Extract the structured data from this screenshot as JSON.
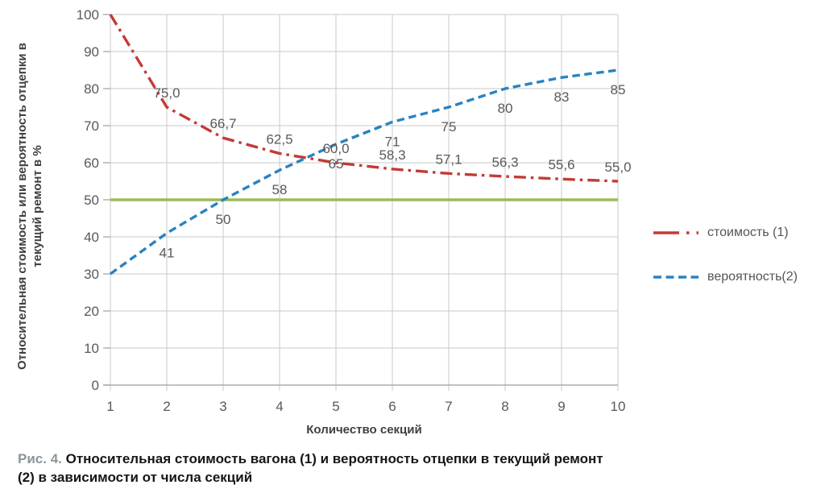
{
  "chart_data": {
    "type": "line",
    "x": [
      1,
      2,
      3,
      4,
      5,
      6,
      7,
      8,
      9,
      10
    ],
    "series": [
      {
        "name": "стоимость (1)",
        "color": "#c43a36",
        "dash": "dash-dot",
        "values": [
          100,
          75.0,
          66.7,
          62.5,
          60.0,
          58.3,
          57.1,
          56.3,
          55.6,
          55.0
        ],
        "labels": [
          "",
          "75,0",
          "66,7",
          "62,5",
          "60,0",
          "58,3",
          "57,1",
          "56,3",
          "55,6",
          "55,0"
        ],
        "label_position": "above"
      },
      {
        "name": "вероятность(2)",
        "color": "#2a82c1",
        "dash": "dashed",
        "values": [
          30,
          41,
          50,
          58,
          65,
          71,
          75,
          80,
          83,
          85
        ],
        "labels": [
          "",
          "41",
          "50",
          "58",
          "65",
          "71",
          "75",
          "80",
          "83",
          "85"
        ],
        "label_position": "below"
      }
    ],
    "reference_line": {
      "value": 50,
      "color": "#9bbb59"
    },
    "title": "",
    "xlabel": "Количество секций",
    "ylabel_line1": "Относительная стоимость или вероятность отцепки в",
    "ylabel_line2": "текущий ремонт в %",
    "xlim": [
      1,
      10
    ],
    "ylim": [
      0,
      100
    ],
    "x_ticks": [
      1,
      2,
      3,
      4,
      5,
      6,
      7,
      8,
      9,
      10
    ],
    "y_ticks": [
      0,
      10,
      20,
      30,
      40,
      50,
      60,
      70,
      80,
      90,
      100
    ],
    "grid": true,
    "legend_position": "right",
    "grid_color": "#c8c8c8",
    "axis_color": "#9e9e9e",
    "tick_label_color": "#595959"
  },
  "caption": {
    "prefix": "Рис. 4.",
    "line1": "Относительная стоимость вагона (1) и вероятность отцепки в текущий ремонт",
    "line2": "(2) в зависимости от числа секций"
  }
}
